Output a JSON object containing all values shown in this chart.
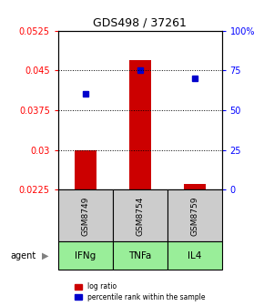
{
  "title": "GDS498 / 37261",
  "samples": [
    "GSM8749",
    "GSM8754",
    "GSM8759"
  ],
  "agents": [
    "IFNg",
    "TNFa",
    "IL4"
  ],
  "log_ratio_baseline": 0.0225,
  "log_ratio_values": [
    0.03,
    0.047,
    0.0235
  ],
  "percentile_values": [
    60,
    75,
    70
  ],
  "ylim_left": [
    0.0225,
    0.0525
  ],
  "ylim_right": [
    0,
    100
  ],
  "yticks_left": [
    0.0225,
    0.03,
    0.0375,
    0.045,
    0.0525
  ],
  "ytick_labels_left": [
    "0.0225",
    "0.03",
    "0.0375",
    "0.045",
    "0.0525"
  ],
  "yticks_right": [
    0,
    25,
    50,
    75,
    100
  ],
  "ytick_labels_right": [
    "0",
    "25",
    "50",
    "75",
    "100%"
  ],
  "dotted_yticks": [
    0.03,
    0.0375,
    0.045
  ],
  "bar_color": "#cc0000",
  "dot_color": "#0000cc",
  "sample_box_color": "#cccccc",
  "agent_box_color": "#99ee99",
  "bar_width": 0.4
}
